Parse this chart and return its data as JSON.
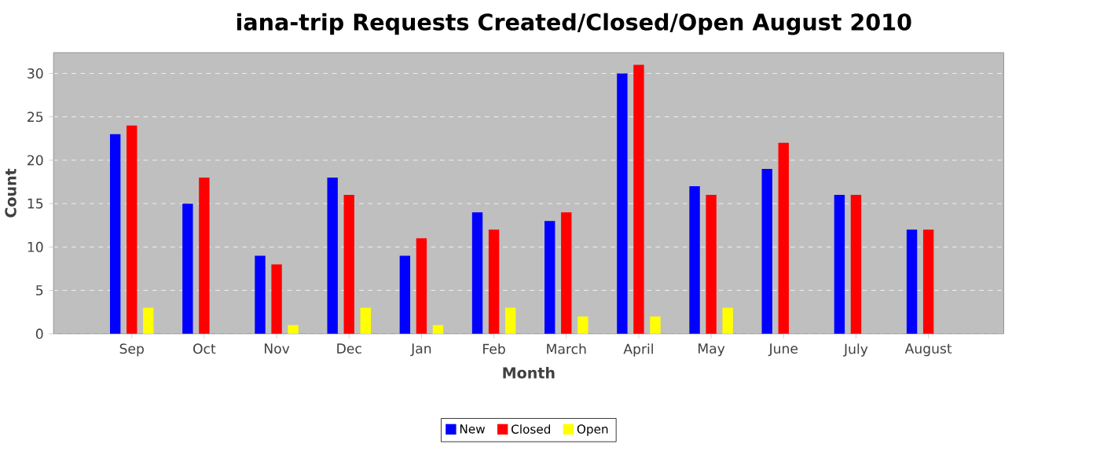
{
  "chart_data": {
    "type": "bar",
    "title": "iana-trip Requests Created/Closed/Open August 2010",
    "xlabel": "Month",
    "ylabel": "Count",
    "categories": [
      "Sep",
      "Oct",
      "Nov",
      "Dec",
      "Jan",
      "Feb",
      "March",
      "April",
      "May",
      "June",
      "July",
      "August"
    ],
    "series": [
      {
        "name": "New",
        "color": "#0000ff",
        "values": [
          23,
          15,
          9,
          18,
          9,
          14,
          13,
          30,
          17,
          19,
          16,
          12
        ]
      },
      {
        "name": "Closed",
        "color": "#ff0000",
        "values": [
          24,
          18,
          8,
          16,
          11,
          12,
          14,
          31,
          16,
          22,
          16,
          12
        ]
      },
      {
        "name": "Open",
        "color": "#ffff00",
        "values": [
          3,
          0,
          1,
          3,
          1,
          3,
          2,
          2,
          3,
          0,
          0,
          0
        ]
      }
    ],
    "ylim": [
      0,
      32.4
    ],
    "yticks": [
      0,
      5,
      10,
      15,
      20,
      25,
      30
    ],
    "grid": "y",
    "legend": "bottom"
  }
}
